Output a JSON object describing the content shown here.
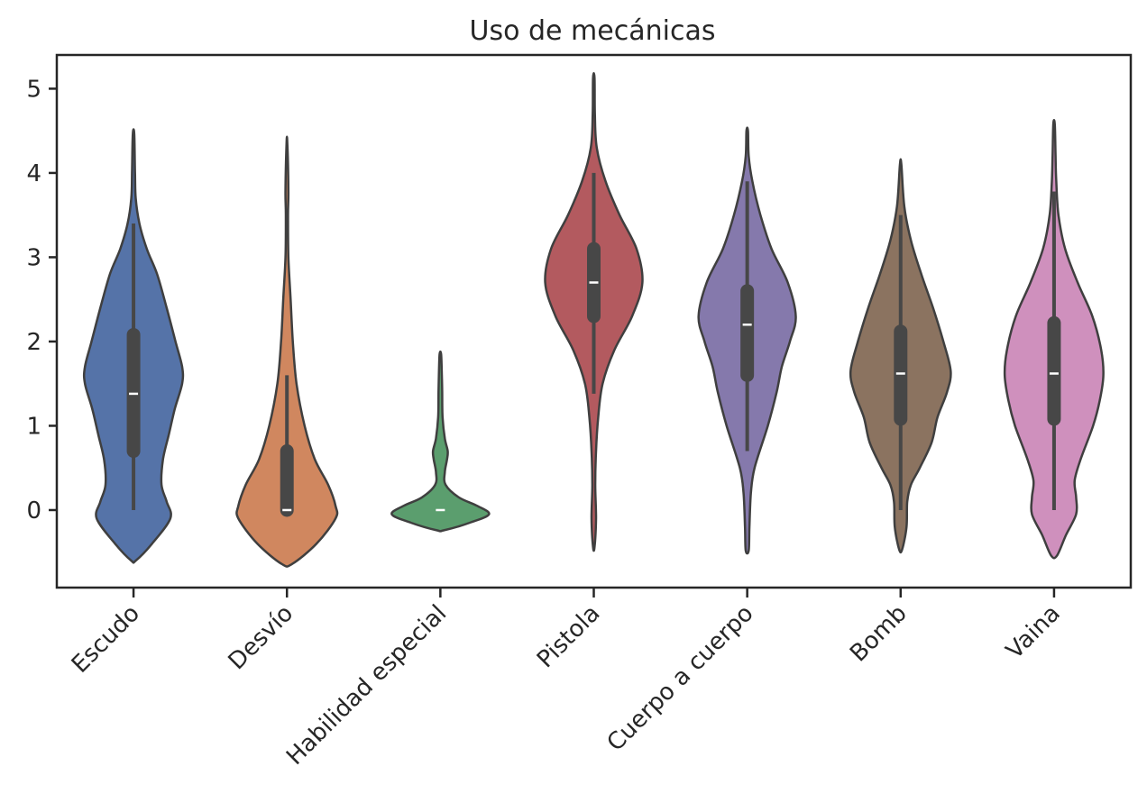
{
  "chart_data": {
    "type": "violin",
    "title": "Uso de mecánicas",
    "xlabel": "",
    "ylabel": "",
    "ylim": [
      -0.92,
      5.4
    ],
    "yticks": [
      0,
      1,
      2,
      3,
      4,
      5
    ],
    "grid": false,
    "categories": [
      "Escudo",
      "Desvío",
      "Habilidad especial",
      "Pistola",
      "Cuerpo a cuerpo",
      "Bomb",
      "Vaina"
    ],
    "colors": [
      "#5573a8",
      "#d0875f",
      "#5b9e6e",
      "#b35a5f",
      "#8579ac",
      "#8b7360",
      "#cf90bd"
    ],
    "series": [
      {
        "name": "Escudo",
        "min": 0,
        "q1": 0.7,
        "median": 1.38,
        "q3": 2.08,
        "max": 3.4,
        "density": [
          [
            -0.6,
            0.03
          ],
          [
            -0.4,
            0.25
          ],
          [
            -0.1,
            0.5
          ],
          [
            0.1,
            0.45
          ],
          [
            0.3,
            0.38
          ],
          [
            0.6,
            0.4
          ],
          [
            0.9,
            0.48
          ],
          [
            1.2,
            0.56
          ],
          [
            1.5,
            0.66
          ],
          [
            1.7,
            0.66
          ],
          [
            2.0,
            0.57
          ],
          [
            2.4,
            0.45
          ],
          [
            2.8,
            0.32
          ],
          [
            3.1,
            0.18
          ],
          [
            3.4,
            0.08
          ],
          [
            3.7,
            0.03
          ],
          [
            4.0,
            0.02
          ],
          [
            4.46,
            0.01
          ]
        ]
      },
      {
        "name": "Desvío",
        "min": 0,
        "q1": 0.0,
        "median": 0.0,
        "q3": 0.7,
        "max": 1.6,
        "density": [
          [
            -0.64,
            0.07
          ],
          [
            -0.4,
            0.4
          ],
          [
            -0.1,
            0.66
          ],
          [
            0.05,
            0.66
          ],
          [
            0.3,
            0.56
          ],
          [
            0.6,
            0.38
          ],
          [
            1.0,
            0.24
          ],
          [
            1.5,
            0.13
          ],
          [
            2.0,
            0.08
          ],
          [
            2.5,
            0.05
          ],
          [
            3.0,
            0.02
          ],
          [
            3.5,
            0.015
          ],
          [
            3.8,
            0.02
          ],
          [
            4.36,
            0.005
          ]
        ]
      },
      {
        "name": "Habilidad especial",
        "min": 0,
        "q1": 0.0,
        "median": 0.0,
        "q3": 0.0,
        "max": 0.0,
        "density": [
          [
            -0.24,
            0.05
          ],
          [
            -0.15,
            0.4
          ],
          [
            -0.05,
            0.66
          ],
          [
            0.05,
            0.5
          ],
          [
            0.15,
            0.25
          ],
          [
            0.3,
            0.07
          ],
          [
            0.45,
            0.06
          ],
          [
            0.6,
            0.09
          ],
          [
            0.7,
            0.1
          ],
          [
            0.85,
            0.06
          ],
          [
            1.1,
            0.03
          ],
          [
            1.4,
            0.025
          ],
          [
            1.6,
            0.02
          ],
          [
            1.85,
            0.01
          ]
        ]
      },
      {
        "name": "Pistola",
        "min": 1.38,
        "q1": 2.3,
        "median": 2.7,
        "q3": 3.1,
        "max": 4.0,
        "density": [
          [
            -0.44,
            0.01
          ],
          [
            -0.1,
            0.03
          ],
          [
            0.3,
            0.02
          ],
          [
            0.7,
            0.03
          ],
          [
            1.1,
            0.06
          ],
          [
            1.5,
            0.12
          ],
          [
            1.9,
            0.28
          ],
          [
            2.3,
            0.52
          ],
          [
            2.7,
            0.66
          ],
          [
            3.1,
            0.58
          ],
          [
            3.5,
            0.35
          ],
          [
            3.9,
            0.16
          ],
          [
            4.3,
            0.04
          ],
          [
            4.7,
            0.015
          ],
          [
            5.13,
            0.01
          ]
        ]
      },
      {
        "name": "Cuerpo a cuerpo",
        "min": 0.7,
        "q1": 1.6,
        "median": 2.2,
        "q3": 2.6,
        "max": 3.9,
        "density": [
          [
            -0.48,
            0.02
          ],
          [
            -0.2,
            0.03
          ],
          [
            0.2,
            0.05
          ],
          [
            0.5,
            0.1
          ],
          [
            1.0,
            0.28
          ],
          [
            1.4,
            0.4
          ],
          [
            1.7,
            0.47
          ],
          [
            2.0,
            0.58
          ],
          [
            2.3,
            0.66
          ],
          [
            2.7,
            0.55
          ],
          [
            3.1,
            0.33
          ],
          [
            3.5,
            0.18
          ],
          [
            3.9,
            0.07
          ],
          [
            4.2,
            0.02
          ],
          [
            4.5,
            0.01
          ]
        ]
      },
      {
        "name": "Bomb",
        "min": 0,
        "q1": 1.08,
        "median": 1.62,
        "q3": 2.12,
        "max": 3.5,
        "density": [
          [
            -0.47,
            0.02
          ],
          [
            -0.2,
            0.08
          ],
          [
            0.1,
            0.09
          ],
          [
            0.3,
            0.14
          ],
          [
            0.5,
            0.26
          ],
          [
            0.8,
            0.42
          ],
          [
            1.1,
            0.5
          ],
          [
            1.4,
            0.63
          ],
          [
            1.65,
            0.68
          ],
          [
            2.0,
            0.58
          ],
          [
            2.4,
            0.44
          ],
          [
            2.8,
            0.28
          ],
          [
            3.2,
            0.14
          ],
          [
            3.6,
            0.05
          ],
          [
            4.1,
            0.01
          ]
        ]
      },
      {
        "name": "Vaina",
        "min": 0,
        "q1": 1.08,
        "median": 1.62,
        "q3": 2.22,
        "max": 3.78,
        "density": [
          [
            -0.54,
            0.04
          ],
          [
            -0.3,
            0.16
          ],
          [
            -0.05,
            0.3
          ],
          [
            0.15,
            0.3
          ],
          [
            0.35,
            0.28
          ],
          [
            0.6,
            0.36
          ],
          [
            1.0,
            0.53
          ],
          [
            1.3,
            0.62
          ],
          [
            1.6,
            0.67
          ],
          [
            1.9,
            0.64
          ],
          [
            2.3,
            0.52
          ],
          [
            2.7,
            0.32
          ],
          [
            3.1,
            0.15
          ],
          [
            3.5,
            0.06
          ],
          [
            3.9,
            0.03
          ],
          [
            4.2,
            0.02
          ],
          [
            4.58,
            0.01
          ]
        ]
      }
    ]
  }
}
